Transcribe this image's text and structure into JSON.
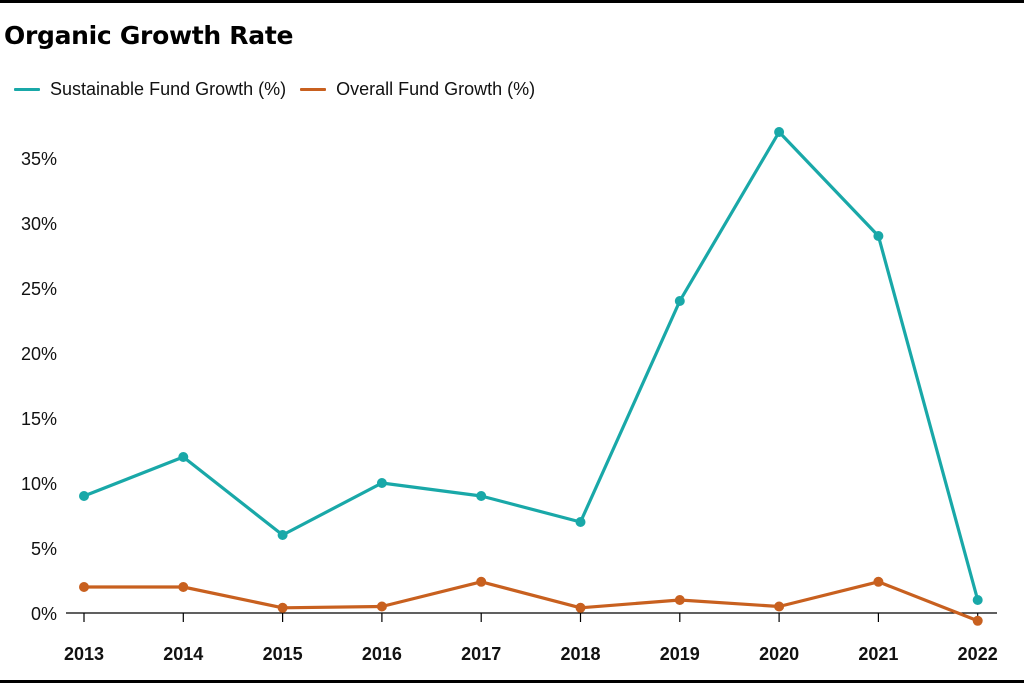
{
  "colors": {
    "sustainable": "#19a8a8",
    "overall": "#c8601f",
    "axis": "#000000"
  },
  "chart_data": {
    "type": "line",
    "title": "Organic Growth Rate",
    "xlabel": "",
    "ylabel": "",
    "categories": [
      "2013",
      "2014",
      "2015",
      "2016",
      "2017",
      "2018",
      "2019",
      "2020",
      "2021",
      "2022"
    ],
    "series": [
      {
        "name": "Sustainable Fund Growth (%)",
        "values": [
          9,
          12,
          6,
          10,
          9,
          7,
          24,
          37,
          29,
          1
        ]
      },
      {
        "name": "Overall Fund Growth (%)",
        "values": [
          2,
          2,
          0.4,
          0.5,
          2.4,
          0.4,
          1,
          0.5,
          2.4,
          -0.6
        ]
      }
    ],
    "yticks": [
      0,
      5,
      10,
      15,
      20,
      25,
      30,
      35
    ],
    "ytick_labels": [
      "0%",
      "5%",
      "10%",
      "15%",
      "20%",
      "25%",
      "30%",
      "35%"
    ],
    "ylim": [
      -1.5,
      38
    ],
    "grid": false,
    "legend": "top-left"
  }
}
